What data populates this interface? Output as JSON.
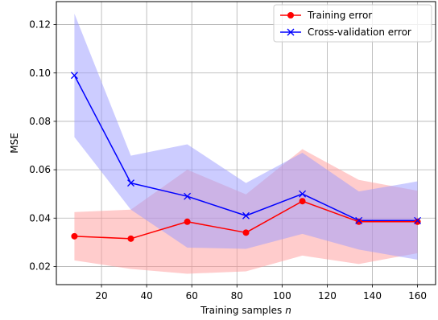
{
  "chart_data": {
    "type": "line",
    "title": "",
    "xlabel": "Training samples",
    "xlabel_var": "n",
    "ylabel": "MSE",
    "xlim": [
      0,
      168
    ],
    "ylim": [
      0.0125,
      0.1295
    ],
    "xticks": [
      20,
      40,
      60,
      80,
      100,
      120,
      140,
      160
    ],
    "xtick_labels": [
      "20",
      "40",
      "60",
      "80",
      "100",
      "120",
      "140",
      "160"
    ],
    "yticks": [
      0.02,
      0.04,
      0.06,
      0.08,
      0.1,
      0.12
    ],
    "ytick_labels": [
      "0.02",
      "0.04",
      "0.06",
      "0.08",
      "0.10",
      "0.12"
    ],
    "grid": true,
    "legend_position": "top-right",
    "x": [
      8,
      33,
      58,
      84,
      109,
      134,
      160
    ],
    "series": [
      {
        "name": "Training error",
        "color": "#ff0000",
        "band_color": "#ff9999",
        "marker": "circle",
        "values": [
          0.0325,
          0.0315,
          0.0385,
          0.034,
          0.047,
          0.0385,
          0.0385
        ],
        "lower": [
          0.0225,
          0.019,
          0.017,
          0.018,
          0.0245,
          0.021,
          0.0255
        ],
        "upper": [
          0.0425,
          0.0435,
          0.06,
          0.0498,
          0.0685,
          0.0558,
          0.0513
        ]
      },
      {
        "name": "Cross-validation error",
        "color": "#0000ff",
        "band_color": "#9999ff",
        "marker": "x",
        "values": [
          0.099,
          0.0545,
          0.049,
          0.041,
          0.05,
          0.039,
          0.039
        ],
        "lower": [
          0.0735,
          0.0435,
          0.0278,
          0.0273,
          0.0335,
          0.027,
          0.0228
        ],
        "upper": [
          0.1245,
          0.0658,
          0.0705,
          0.0545,
          0.067,
          0.051,
          0.0552
        ]
      }
    ]
  }
}
